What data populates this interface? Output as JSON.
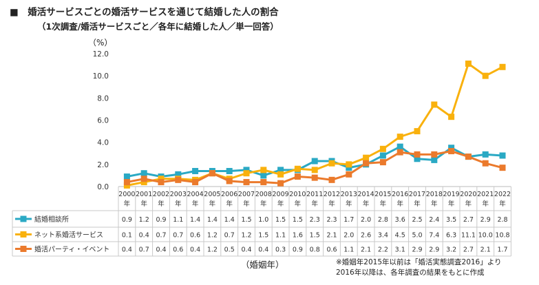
{
  "title": "■　婚活サービスごとの婚活サービスを通じて結婚した人の割合",
  "subtitle": "（1次調査/婚活サービスごと／各年に結婚した人／単一回答）",
  "unit": "（%）",
  "xlabel": "（婚姻年）",
  "note": [
    "※婚姻年2015年以前は「婚活実態調査2016」より",
    "2016年以降は、各年調査の結果をもとに作成"
  ],
  "year_suffix": "年",
  "colors": {
    "series1": "#2aa9c4",
    "series2": "#f9b10d",
    "series3": "#eb7a2c"
  },
  "chart_data": {
    "type": "line",
    "ylim": [
      0,
      12
    ],
    "yticks": [
      "0.0",
      "2.0",
      "4.0",
      "6.0",
      "8.0",
      "10.0",
      "12.0"
    ],
    "categories": [
      "2000",
      "2001",
      "2002",
      "2003",
      "2004",
      "2005",
      "2006",
      "2007",
      "2008",
      "2009",
      "2010",
      "2011",
      "2012",
      "2013",
      "2014",
      "2015",
      "2016",
      "2017",
      "2018",
      "2019",
      "2020",
      "2021",
      "2022"
    ],
    "series": [
      {
        "name": "結婚相談所",
        "values": [
          0.9,
          1.2,
          0.9,
          1.1,
          1.4,
          1.4,
          1.4,
          1.5,
          1.0,
          1.5,
          1.5,
          2.3,
          2.3,
          1.7,
          2.0,
          2.8,
          3.6,
          2.5,
          2.4,
          3.5,
          2.7,
          2.9,
          2.8
        ]
      },
      {
        "name": "ネット系婚活サービス",
        "values": [
          0.1,
          0.4,
          0.7,
          0.7,
          0.6,
          1.2,
          0.7,
          1.2,
          1.5,
          1.1,
          1.6,
          1.5,
          2.1,
          2.0,
          2.6,
          3.4,
          4.5,
          5.0,
          7.4,
          6.3,
          11.1,
          10.0,
          10.8
        ]
      },
      {
        "name": "婚活パーティ・イベント",
        "values": [
          0.4,
          0.7,
          0.4,
          0.6,
          0.4,
          1.2,
          0.5,
          0.4,
          0.4,
          0.3,
          0.9,
          0.8,
          0.6,
          1.1,
          2.1,
          2.2,
          3.1,
          2.9,
          2.9,
          3.2,
          2.7,
          2.1,
          1.7
        ]
      }
    ]
  }
}
